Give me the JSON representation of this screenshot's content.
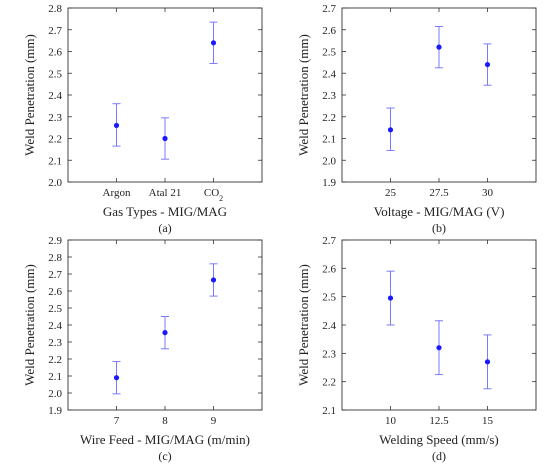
{
  "colors": {
    "marker": "#1a1aff",
    "errorbar": "#7a7aff",
    "axis": "#333333",
    "text": "#222222"
  },
  "chart_data": [
    {
      "type": "scatter",
      "subtype": "errorbar",
      "caption": "(a)",
      "xlabel": "Gas Types - MIG/MAG",
      "ylabel": "Weld Penetration (mm)",
      "categories": [
        "Argon",
        "Atal 21",
        "CO2"
      ],
      "ylim": [
        2.0,
        2.8
      ],
      "yticks": [
        "2.0",
        "2.1",
        "2.2",
        "2.3",
        "2.4",
        "2.5",
        "2.6",
        "2.7",
        "2.8"
      ],
      "values": [
        2.26,
        2.2,
        2.64
      ],
      "lower": [
        2.165,
        2.105,
        2.545
      ],
      "upper": [
        2.36,
        2.295,
        2.735
      ]
    },
    {
      "type": "scatter",
      "subtype": "errorbar",
      "caption": "(b)",
      "xlabel": "Voltage - MIG/MAG (V)",
      "ylabel": "Weld Penetration (mm)",
      "categories": [
        "25",
        "27.5",
        "30"
      ],
      "ylim": [
        1.9,
        2.7
      ],
      "yticks": [
        "1.9",
        "2.0",
        "2.1",
        "2.2",
        "2.3",
        "2.4",
        "2.5",
        "2.6",
        "2.7"
      ],
      "values": [
        2.14,
        2.52,
        2.44
      ],
      "lower": [
        2.045,
        2.425,
        2.345
      ],
      "upper": [
        2.24,
        2.615,
        2.535
      ]
    },
    {
      "type": "scatter",
      "subtype": "errorbar",
      "caption": "(c)",
      "xlabel": "Wire Feed - MIG/MAG (m/min)",
      "ylabel": "Weld Penetration (mm)",
      "categories": [
        "7",
        "8",
        "9"
      ],
      "ylim": [
        1.9,
        2.9
      ],
      "yticks": [
        "1.9",
        "2.0",
        "2.1",
        "2.2",
        "2.3",
        "2.4",
        "2.5",
        "2.6",
        "2.7",
        "2.8",
        "2.9"
      ],
      "values": [
        2.09,
        2.355,
        2.665
      ],
      "lower": [
        1.995,
        2.26,
        2.57
      ],
      "upper": [
        2.185,
        2.45,
        2.76
      ]
    },
    {
      "type": "scatter",
      "subtype": "errorbar",
      "caption": "(d)",
      "xlabel": "Welding Speed (mm/s)",
      "ylabel": "Weld Penetration (mm)",
      "categories": [
        "10",
        "12.5",
        "15"
      ],
      "ylim": [
        2.1,
        2.7
      ],
      "yticks": [
        "2.1",
        "2.2",
        "2.3",
        "2.4",
        "2.5",
        "2.6",
        "2.7"
      ],
      "values": [
        2.495,
        2.32,
        2.27
      ],
      "lower": [
        2.4,
        2.225,
        2.175
      ],
      "upper": [
        2.59,
        2.415,
        2.365
      ]
    }
  ]
}
